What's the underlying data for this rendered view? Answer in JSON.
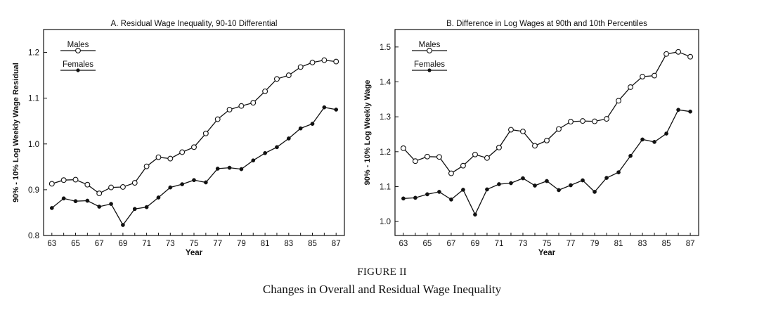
{
  "figure": {
    "label": "FIGURE II",
    "title": "Changes in Overall and Residual Wage Inequality"
  },
  "chart_data": [
    {
      "type": "line",
      "title": "A. Residual Wage Inequality, 90-10 Differential",
      "xlabel": "Year",
      "ylabel": "90% - 10% Log Weekly Wage Residual",
      "x": [
        63,
        64,
        65,
        66,
        67,
        68,
        69,
        70,
        71,
        72,
        73,
        74,
        75,
        76,
        77,
        78,
        79,
        80,
        81,
        82,
        83,
        84,
        85,
        86,
        87
      ],
      "xticks": [
        "63",
        "65",
        "67",
        "69",
        "71",
        "73",
        "75",
        "77",
        "79",
        "81",
        "83",
        "85",
        "87"
      ],
      "xlim": [
        62.3,
        87.7
      ],
      "ylim": [
        0.8,
        1.25
      ],
      "yticks": [
        "0.8",
        "0.9",
        "1.0",
        "1.1",
        "1.2"
      ],
      "legend_position": "top-left",
      "grid": false,
      "series": [
        {
          "name": "Males",
          "marker": "open-circle",
          "values": [
            0.913,
            0.921,
            0.922,
            0.911,
            0.892,
            0.905,
            0.906,
            0.915,
            0.951,
            0.971,
            0.968,
            0.982,
            0.993,
            1.023,
            1.054,
            1.075,
            1.083,
            1.09,
            1.115,
            1.142,
            1.15,
            1.168,
            1.178,
            1.183,
            1.18
          ]
        },
        {
          "name": "Females",
          "marker": "filled-dot",
          "values": [
            0.86,
            0.881,
            0.875,
            0.876,
            0.863,
            0.869,
            0.823,
            0.858,
            0.862,
            0.883,
            0.905,
            0.912,
            0.921,
            0.916,
            0.946,
            0.948,
            0.945,
            0.964,
            0.98,
            0.993,
            1.012,
            1.034,
            1.044,
            1.08,
            1.075
          ]
        }
      ]
    },
    {
      "type": "line",
      "title": "B. Difference in Log Wages at 90th and 10th Percentiles",
      "xlabel": "Year",
      "ylabel": "90% - 10% Log Weekly Wage",
      "x": [
        63,
        64,
        65,
        66,
        67,
        68,
        69,
        70,
        71,
        72,
        73,
        74,
        75,
        76,
        77,
        78,
        79,
        80,
        81,
        82,
        83,
        84,
        85,
        86,
        87
      ],
      "xticks": [
        "63",
        "65",
        "67",
        "69",
        "71",
        "73",
        "75",
        "77",
        "79",
        "81",
        "83",
        "85",
        "87"
      ],
      "xlim": [
        62.3,
        87.7
      ],
      "ylim": [
        0.96,
        1.55
      ],
      "yticks": [
        "1.0",
        "1.1",
        "1.2",
        "1.3",
        "1.4",
        "1.5"
      ],
      "legend_position": "top-left",
      "grid": false,
      "series": [
        {
          "name": "Males",
          "marker": "open-circle",
          "values": [
            1.21,
            1.173,
            1.186,
            1.185,
            1.138,
            1.16,
            1.192,
            1.182,
            1.212,
            1.263,
            1.258,
            1.217,
            1.232,
            1.265,
            1.286,
            1.288,
            1.287,
            1.294,
            1.346,
            1.385,
            1.415,
            1.418,
            1.48,
            1.486,
            1.472
          ]
        },
        {
          "name": "Females",
          "marker": "filled-dot",
          "values": [
            1.066,
            1.068,
            1.078,
            1.085,
            1.063,
            1.091,
            1.02,
            1.092,
            1.107,
            1.11,
            1.124,
            1.103,
            1.116,
            1.09,
            1.104,
            1.118,
            1.085,
            1.125,
            1.141,
            1.188,
            1.235,
            1.228,
            1.252,
            1.32,
            1.315
          ]
        }
      ]
    }
  ]
}
